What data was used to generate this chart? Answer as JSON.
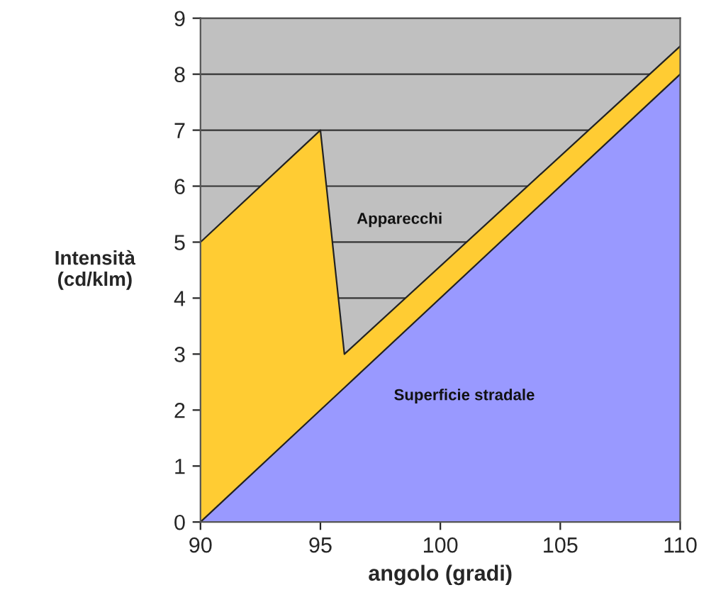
{
  "chart_data": {
    "type": "area",
    "xlabel": "angolo (gradi)",
    "ylabel": "Intensità\n(cd/klm)",
    "series": [
      {
        "name": "Apparecchi",
        "color": "#ffcc33",
        "x": [
          90,
          95,
          96,
          110
        ],
        "values": [
          5,
          7,
          3,
          8.5
        ]
      },
      {
        "name": "Superficie stradale",
        "color": "#9999ff",
        "x": [
          90,
          95,
          96,
          110
        ],
        "values": [
          0,
          2,
          2.4,
          8
        ]
      }
    ],
    "xlim": [
      90,
      110
    ],
    "xticks": [
      90,
      95,
      100,
      105,
      110
    ],
    "ylim": [
      0,
      9
    ],
    "yticks": [
      0,
      1,
      2,
      3,
      4,
      5,
      6,
      7,
      8,
      9
    ],
    "grid": "y"
  }
}
